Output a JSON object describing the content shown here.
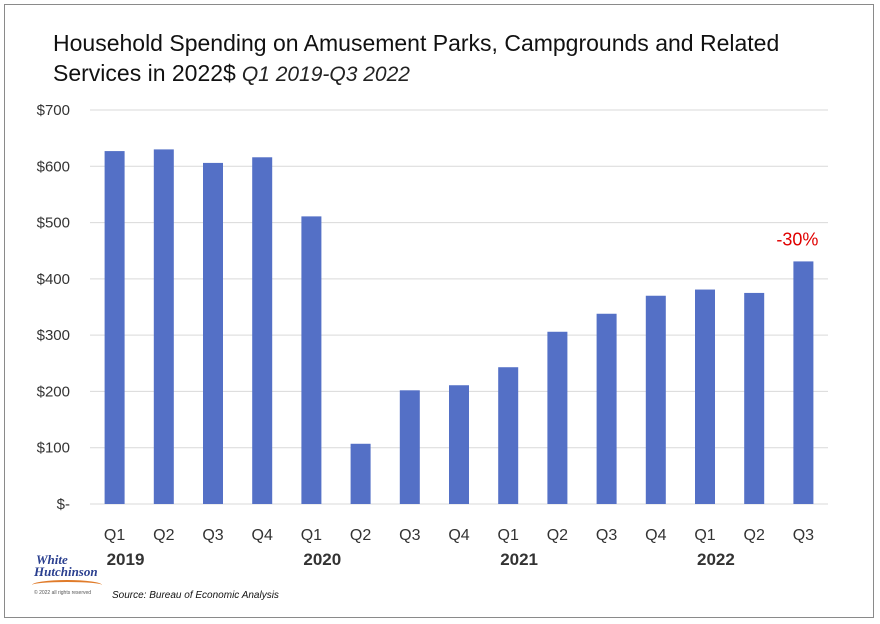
{
  "title": "Household Spending on Amusement Parks, Campgrounds and Related Services in 2022$",
  "subtitle": "Q1 2019-Q3 2022",
  "source": "Source: Bureau of Economic Analysis",
  "logo": {
    "line1": "White",
    "line2": "Hutchinson",
    "tiny": "© 2022 all rights reserved"
  },
  "colors": {
    "bar": "#5470c6",
    "annotation": "#e00000",
    "grid": "#d9d9d9"
  },
  "chart_data": {
    "type": "bar",
    "categories": [
      "Q1",
      "Q2",
      "Q3",
      "Q4",
      "Q1",
      "Q2",
      "Q3",
      "Q4",
      "Q1",
      "Q2",
      "Q3",
      "Q4",
      "Q1",
      "Q2",
      "Q3"
    ],
    "years": [
      {
        "label": "2019",
        "start": 0
      },
      {
        "label": "2020",
        "start": 4
      },
      {
        "label": "2021",
        "start": 8
      },
      {
        "label": "2022",
        "start": 12
      }
    ],
    "values": [
      627,
      630,
      606,
      616,
      511,
      107,
      202,
      211,
      243,
      306,
      338,
      370,
      381,
      375,
      431
    ],
    "ylim": [
      0,
      700
    ],
    "yticks": [
      0,
      100,
      200,
      300,
      400,
      500,
      600,
      700
    ],
    "ytick_labels": [
      "$-",
      "$100",
      "$200",
      "$300",
      "$400",
      "$500",
      "$600",
      "$700"
    ],
    "annotation": {
      "index": 14,
      "text": "-30%"
    },
    "grid": true
  }
}
